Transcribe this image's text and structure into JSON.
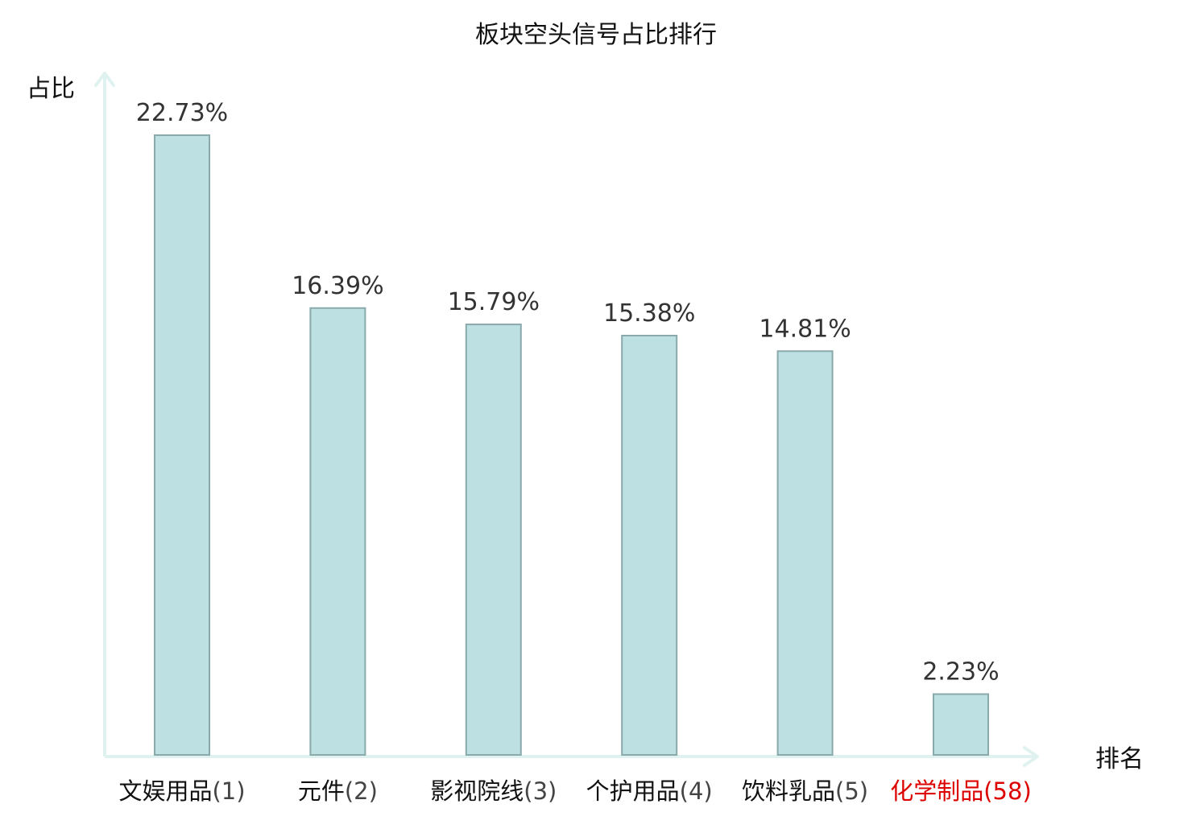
{
  "chart_data": {
    "type": "bar",
    "title": "板块空头信号占比排行",
    "xlabel": "排名",
    "ylabel": "占比",
    "categories": [
      {
        "name": "文娱用品",
        "rank": "(1)",
        "highlight": false
      },
      {
        "name": "元件",
        "rank": "(2)",
        "highlight": false
      },
      {
        "name": "影视院线",
        "rank": "(3)",
        "highlight": false
      },
      {
        "name": "个护用品",
        "rank": "(4)",
        "highlight": false
      },
      {
        "name": "饮料乳品",
        "rank": "(5)",
        "highlight": false
      },
      {
        "name": "化学制品",
        "rank": "(58)",
        "highlight": true
      }
    ],
    "values": [
      22.73,
      16.39,
      15.79,
      15.38,
      14.81,
      2.23
    ],
    "value_labels": [
      "22.73%",
      "16.39%",
      "15.79%",
      "15.38%",
      "14.81%",
      "2.23%"
    ],
    "ylim": [
      0,
      24
    ],
    "grid": false,
    "colors": {
      "bar_fill": "#bde0e3",
      "bar_stroke": "#8aa9ab",
      "axis": "#e0f2f0",
      "highlight": "#dd0000",
      "rank_text": "#444444",
      "value_text": "#333333"
    }
  }
}
